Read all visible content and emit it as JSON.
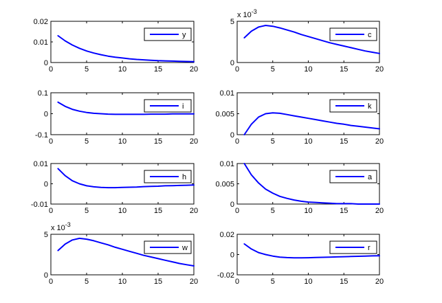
{
  "figure": {
    "background": "#ffffff",
    "line_color": "#0000ff"
  },
  "chart_data": [
    {
      "type": "line",
      "legend": "y",
      "legend_position": "top-right",
      "x": [
        1,
        2,
        3,
        4,
        5,
        6,
        7,
        8,
        9,
        10,
        11,
        12,
        13,
        14,
        15,
        16,
        17,
        18,
        19,
        20
      ],
      "values": [
        0.013,
        0.0105,
        0.0085,
        0.0069,
        0.0056,
        0.0046,
        0.0038,
        0.0031,
        0.0026,
        0.0022,
        0.0018,
        0.0015,
        0.0013,
        0.0011,
        0.0009,
        0.0008,
        0.0007,
        0.0006,
        0.0005,
        0.0004
      ],
      "xlim": [
        0,
        20
      ],
      "ylim": [
        0,
        0.02
      ],
      "xticks": [
        0,
        5,
        10,
        15,
        20
      ],
      "xtick_labels": [
        "0",
        "5",
        "10",
        "15",
        "20"
      ],
      "yticks": [
        0,
        0.01,
        0.02
      ],
      "ytick_labels": [
        "0",
        "0.01",
        "0.02"
      ],
      "exponent": ""
    },
    {
      "type": "line",
      "legend": "c",
      "legend_position": "top-right",
      "x": [
        1,
        2,
        3,
        4,
        5,
        6,
        7,
        8,
        9,
        10,
        11,
        12,
        13,
        14,
        15,
        16,
        17,
        18,
        19,
        20
      ],
      "values": [
        3.0,
        3.8,
        4.3,
        4.5,
        4.4,
        4.2,
        3.95,
        3.7,
        3.4,
        3.15,
        2.9,
        2.65,
        2.4,
        2.2,
        2.0,
        1.8,
        1.6,
        1.4,
        1.25,
        1.1
      ],
      "xlim": [
        0,
        20
      ],
      "ylim": [
        0,
        5
      ],
      "xticks": [
        0,
        5,
        10,
        15,
        20
      ],
      "xtick_labels": [
        "0",
        "5",
        "10",
        "15",
        "20"
      ],
      "yticks": [
        0,
        5
      ],
      "ytick_labels": [
        "0",
        "5"
      ],
      "exponent": "-3"
    },
    {
      "type": "line",
      "legend": "i",
      "legend_position": "top-right",
      "x": [
        1,
        2,
        3,
        4,
        5,
        6,
        7,
        8,
        9,
        10,
        11,
        12,
        13,
        14,
        15,
        16,
        17,
        18,
        19,
        20
      ],
      "values": [
        0.055,
        0.035,
        0.021,
        0.012,
        0.006,
        0.002,
        0.0,
        -0.002,
        -0.003,
        -0.003,
        -0.003,
        -0.003,
        -0.003,
        -0.002,
        -0.002,
        -0.002,
        -0.001,
        -0.001,
        -0.001,
        -0.001
      ],
      "xlim": [
        0,
        20
      ],
      "ylim": [
        -0.1,
        0.1
      ],
      "xticks": [
        0,
        5,
        10,
        15,
        20
      ],
      "xtick_labels": [
        "0",
        "5",
        "10",
        "15",
        "20"
      ],
      "yticks": [
        -0.1,
        0,
        0.1
      ],
      "ytick_labels": [
        "-0.1",
        "0",
        "0.1"
      ],
      "exponent": ""
    },
    {
      "type": "line",
      "legend": "k",
      "legend_position": "top-right",
      "x": [
        1,
        2,
        3,
        4,
        5,
        6,
        7,
        8,
        9,
        10,
        11,
        12,
        13,
        14,
        15,
        16,
        17,
        18,
        19,
        20
      ],
      "values": [
        0.0,
        0.0025,
        0.0042,
        0.005,
        0.0052,
        0.0051,
        0.0048,
        0.0045,
        0.0042,
        0.0039,
        0.0036,
        0.0033,
        0.003,
        0.0027,
        0.0025,
        0.0022,
        0.002,
        0.0018,
        0.0016,
        0.0014
      ],
      "xlim": [
        0,
        20
      ],
      "ylim": [
        0,
        0.01
      ],
      "xticks": [
        0,
        5,
        10,
        15,
        20
      ],
      "xtick_labels": [
        "0",
        "5",
        "10",
        "15",
        "20"
      ],
      "yticks": [
        0,
        0.005,
        0.01
      ],
      "ytick_labels": [
        "0",
        "0.005",
        "0.01"
      ],
      "exponent": ""
    },
    {
      "type": "line",
      "legend": "h",
      "legend_position": "top-right",
      "x": [
        1,
        2,
        3,
        4,
        5,
        6,
        7,
        8,
        9,
        10,
        11,
        12,
        13,
        14,
        15,
        16,
        17,
        18,
        19,
        20
      ],
      "values": [
        0.0075,
        0.004,
        0.0015,
        0.0,
        -0.001,
        -0.0015,
        -0.0018,
        -0.0019,
        -0.0019,
        -0.0018,
        -0.0017,
        -0.0016,
        -0.0014,
        -0.0013,
        -0.0012,
        -0.001,
        -0.0009,
        -0.0008,
        -0.0007,
        -0.0006
      ],
      "xlim": [
        0,
        20
      ],
      "ylim": [
        -0.01,
        0.01
      ],
      "xticks": [
        0,
        5,
        10,
        15,
        20
      ],
      "xtick_labels": [
        "0",
        "5",
        "10",
        "15",
        "20"
      ],
      "yticks": [
        -0.01,
        0,
        0.01
      ],
      "ytick_labels": [
        "-0.01",
        "0",
        "0.01"
      ],
      "exponent": ""
    },
    {
      "type": "line",
      "legend": "a",
      "legend_position": "top-right",
      "x": [
        1,
        2,
        3,
        4,
        5,
        6,
        7,
        8,
        9,
        10,
        11,
        12,
        13,
        14,
        15,
        16,
        17,
        18,
        19,
        20
      ],
      "values": [
        0.01,
        0.0072,
        0.0052,
        0.0037,
        0.0027,
        0.0019,
        0.0014,
        0.001,
        0.0007,
        0.0005,
        0.0004,
        0.0003,
        0.0002,
        0.0001,
        0.0001,
        0.0001,
        0.0,
        0.0,
        0.0,
        0.0
      ],
      "xlim": [
        0,
        20
      ],
      "ylim": [
        0,
        0.01
      ],
      "xticks": [
        0,
        5,
        10,
        15,
        20
      ],
      "xtick_labels": [
        "0",
        "5",
        "10",
        "15",
        "20"
      ],
      "yticks": [
        0,
        0.005,
        0.01
      ],
      "ytick_labels": [
        "0",
        "0.005",
        "0.01"
      ],
      "exponent": ""
    },
    {
      "type": "line",
      "legend": "w",
      "legend_position": "top-right",
      "x": [
        1,
        2,
        3,
        4,
        5,
        6,
        7,
        8,
        9,
        10,
        11,
        12,
        13,
        14,
        15,
        16,
        17,
        18,
        19,
        20
      ],
      "values": [
        3.0,
        3.8,
        4.3,
        4.5,
        4.4,
        4.2,
        3.95,
        3.7,
        3.4,
        3.15,
        2.9,
        2.65,
        2.4,
        2.2,
        2.0,
        1.8,
        1.6,
        1.4,
        1.25,
        1.1
      ],
      "xlim": [
        0,
        20
      ],
      "ylim": [
        0,
        5
      ],
      "xticks": [
        0,
        5,
        10,
        15,
        20
      ],
      "xtick_labels": [
        "0",
        "5",
        "10",
        "15",
        "20"
      ],
      "yticks": [
        0,
        5
      ],
      "ytick_labels": [
        "0",
        "5"
      ],
      "exponent": "-3"
    },
    {
      "type": "line",
      "legend": "r",
      "legend_position": "top-right",
      "x": [
        1,
        2,
        3,
        4,
        5,
        6,
        7,
        8,
        9,
        10,
        11,
        12,
        13,
        14,
        15,
        16,
        17,
        18,
        19,
        20
      ],
      "values": [
        0.0105,
        0.0055,
        0.002,
        0.0,
        -0.0015,
        -0.0025,
        -0.003,
        -0.0032,
        -0.0032,
        -0.0031,
        -0.0029,
        -0.0027,
        -0.0025,
        -0.0023,
        -0.0021,
        -0.0019,
        -0.0017,
        -0.0015,
        -0.0013,
        -0.0012
      ],
      "xlim": [
        0,
        20
      ],
      "ylim": [
        -0.02,
        0.02
      ],
      "xticks": [
        0,
        5,
        10,
        15,
        20
      ],
      "xtick_labels": [
        "0",
        "5",
        "10",
        "15",
        "20"
      ],
      "yticks": [
        -0.02,
        0,
        0.02
      ],
      "ytick_labels": [
        "-0.02",
        "0",
        "0.02"
      ],
      "exponent": ""
    }
  ]
}
